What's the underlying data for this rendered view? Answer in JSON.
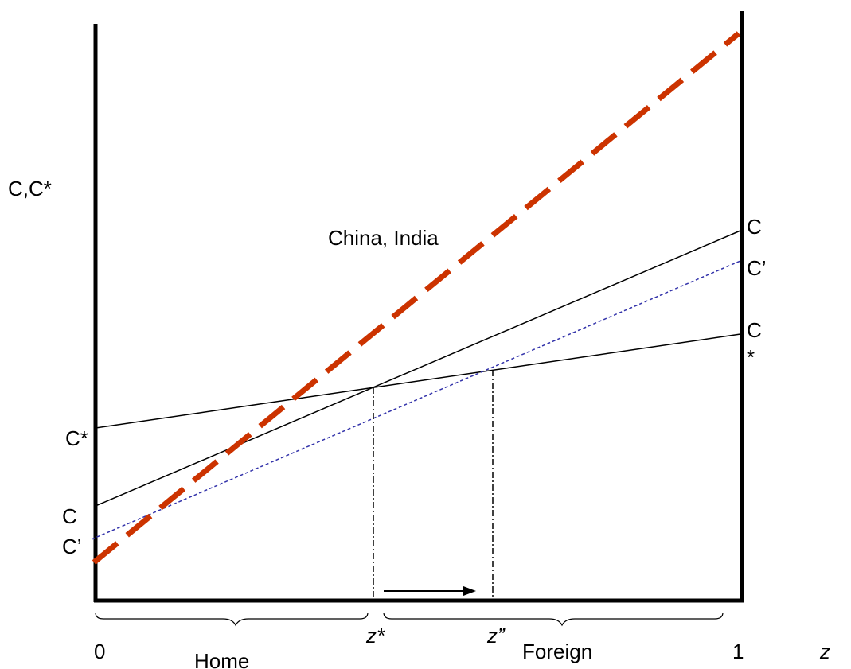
{
  "labels": {
    "y_axis": "C,C*",
    "china_india": "China, India",
    "c_right": "C",
    "c_prime_right": "C’",
    "c_star_right_c": "C",
    "c_star_right_star": "*",
    "c_star_left": "C*",
    "c_left": "C",
    "c_prime_left": "C’",
    "z_star": "z*",
    "z_double_prime": "z”",
    "zero": "0",
    "one": "1",
    "z_axis": "z",
    "home": "Home",
    "foreign": "Foreign"
  },
  "colors": {
    "axis": "#000000",
    "china_india_line": "#cc3300",
    "c_prime_line": "#3333aa",
    "lines": "#000000"
  }
}
